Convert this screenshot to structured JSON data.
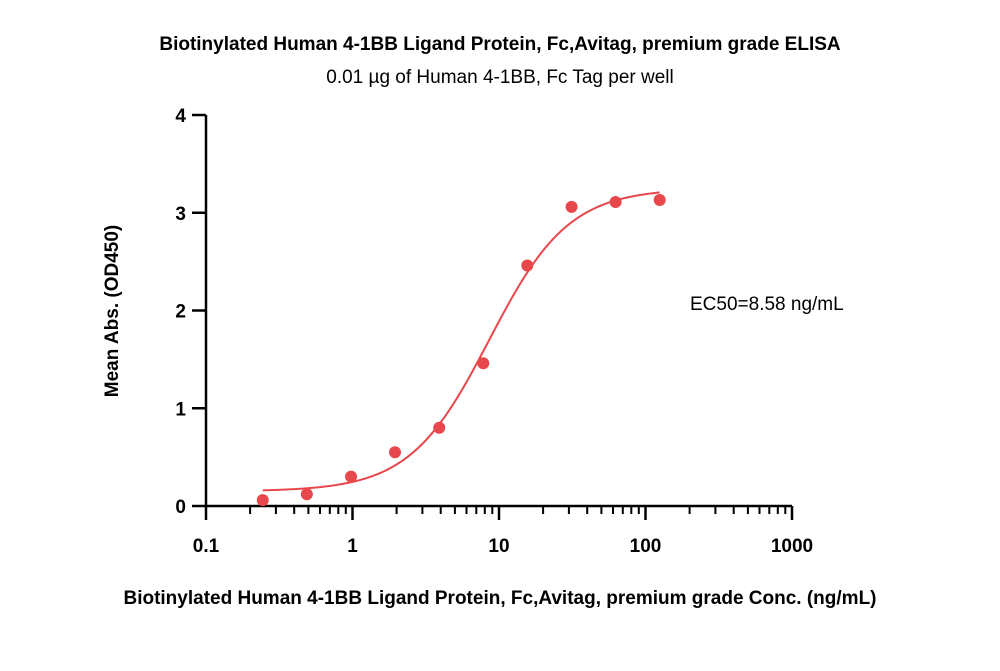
{
  "chart_data": {
    "type": "scatter",
    "title": "Biotinylated Human 4-1BB Ligand Protein, Fc,Avitag, premium grade ELISA",
    "subtitle": "0.01 µg of Human 4-1BB, Fc Tag per well",
    "xlabel": "Biotinylated Human 4-1BB Ligand Protein, Fc,Avitag, premium grade Conc. (ng/mL)",
    "ylabel": "Mean Abs. (OD450)",
    "x_scale": "log",
    "xlim": [
      0.1,
      1000
    ],
    "ylim": [
      0,
      4
    ],
    "x_ticks": [
      0.1,
      1,
      10,
      100,
      1000
    ],
    "x_tick_labels": [
      "0.1",
      "1",
      "10",
      "100",
      "1000"
    ],
    "y_ticks": [
      0,
      1,
      2,
      3,
      4
    ],
    "y_tick_labels": [
      "0",
      "1",
      "2",
      "3",
      "4"
    ],
    "grid": false,
    "annotation": "EC50=8.58 ng/mL",
    "color": "#e8474b",
    "series": [
      {
        "x": [
          0.244,
          0.488,
          0.977,
          1.95,
          3.91,
          7.81,
          15.6,
          31.3,
          62.5,
          125
        ],
        "y": [
          0.06,
          0.12,
          0.3,
          0.55,
          0.8,
          1.46,
          2.46,
          3.06,
          3.11,
          3.13
        ]
      }
    ],
    "fit_curve": {
      "model": "4PL",
      "bottom": 0.15,
      "top": 3.25,
      "ec50": 8.58,
      "hill": 1.6,
      "x_range": [
        0.244,
        125
      ]
    }
  }
}
